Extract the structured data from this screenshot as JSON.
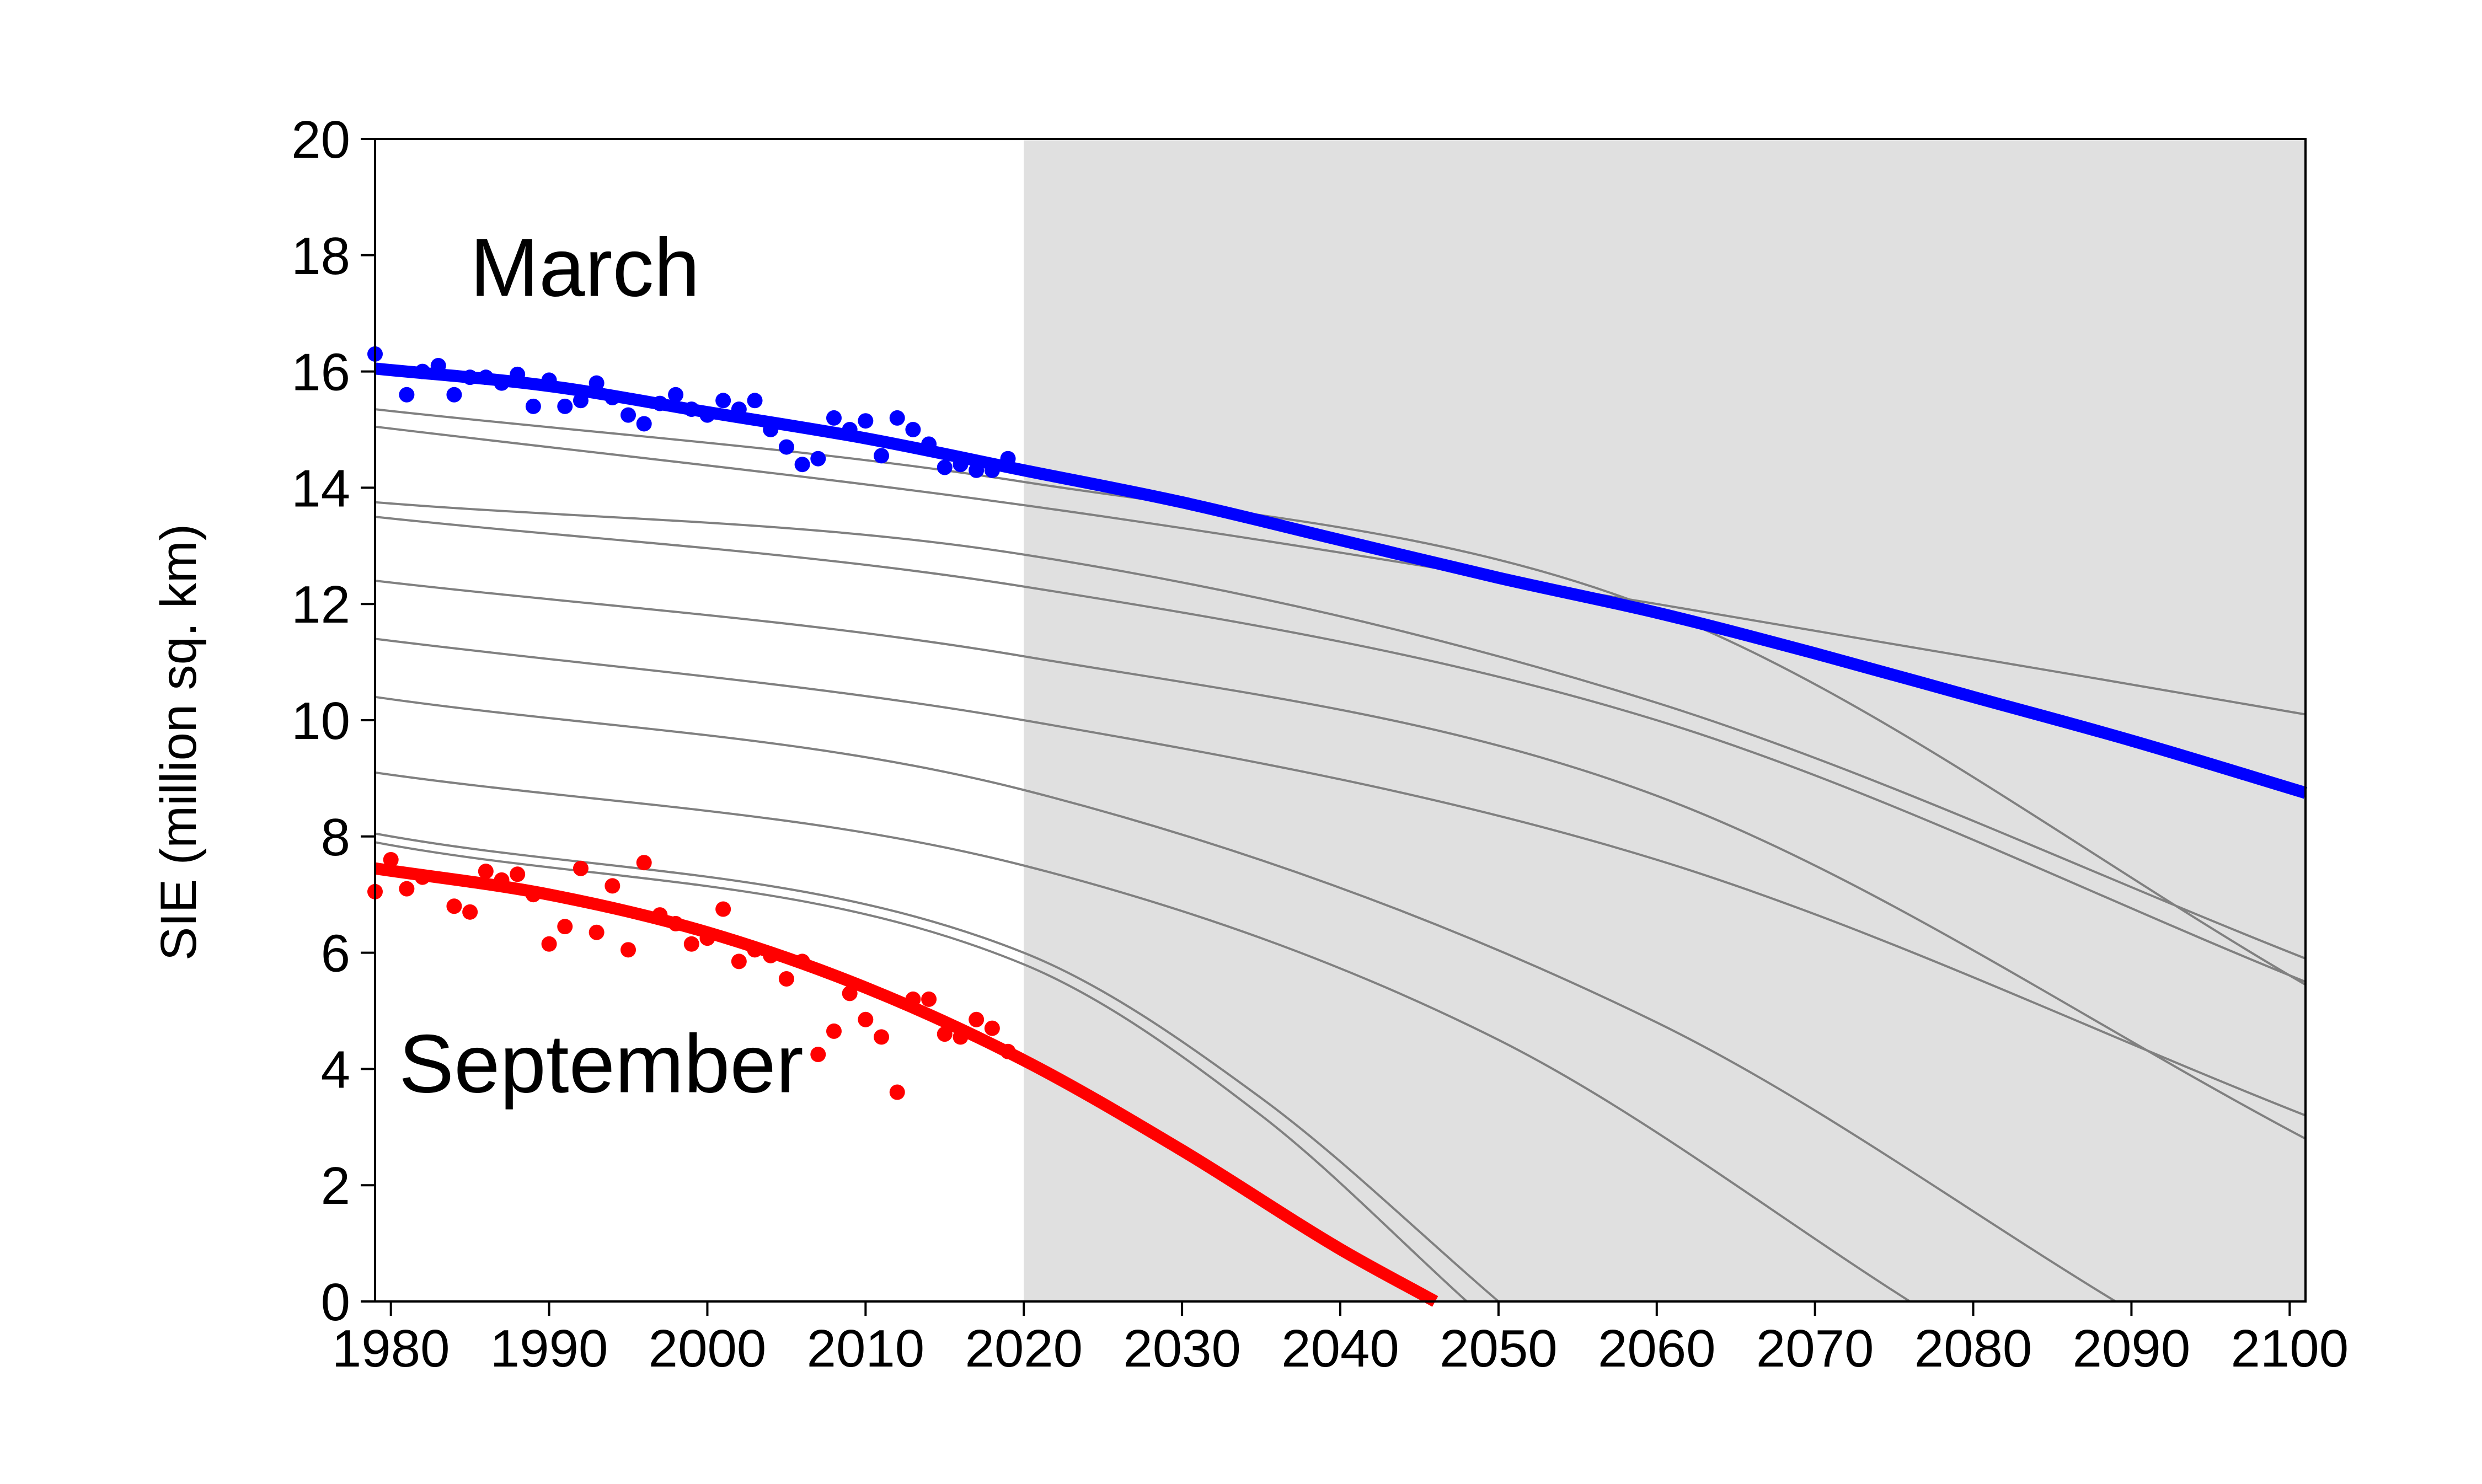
{
  "chart_data": {
    "type": "line",
    "title": "",
    "xlabel": "",
    "ylabel": "SIE (million sq. km)",
    "xlim": [
      1979,
      2101
    ],
    "ylim": [
      0,
      20
    ],
    "xticks": [
      1980,
      1990,
      2000,
      2010,
      2020,
      2030,
      2040,
      2050,
      2060,
      2070,
      2080,
      2090,
      2100
    ],
    "yticks": [
      0,
      2,
      4,
      6,
      8,
      10,
      12,
      14,
      16,
      18,
      20
    ],
    "grid": false,
    "legend": "none",
    "shaded_region": {
      "x_start": 2020,
      "x_end": 2101,
      "color": "#e0e0e0"
    },
    "annotations": [
      {
        "text": "March",
        "x": 1985,
        "y": 17.3
      },
      {
        "text": "September",
        "x": 1980.5,
        "y": 3.6
      }
    ],
    "colors": {
      "march": "#0000ff",
      "september": "#ff0000",
      "ensemble": "#808080",
      "shade": "#e0e0e0"
    },
    "series": [
      {
        "kind": "fit",
        "color": "#0000ff",
        "x": [
          1979,
          1990,
          2000,
          2010,
          2020,
          2030,
          2040,
          2050,
          2060,
          2070,
          2080,
          2090,
          2101
        ],
        "y": [
          16.05,
          15.75,
          15.3,
          14.85,
          14.3,
          13.75,
          13.1,
          12.45,
          11.85,
          11.15,
          10.4,
          9.65,
          8.75
        ]
      },
      {
        "kind": "fit",
        "color": "#ff0000",
        "x": [
          1979,
          1990,
          2000,
          2010,
          2020,
          2030,
          2040,
          2046
        ],
        "y": [
          7.45,
          7.0,
          6.35,
          5.4,
          4.15,
          2.6,
          0.9,
          0.0
        ]
      },
      {
        "kind": "observed",
        "color": "#0000ff",
        "x": [
          1979,
          1981,
          1982,
          1983,
          1984,
          1985,
          1986,
          1987,
          1988,
          1989,
          1990,
          1991,
          1992,
          1993,
          1994,
          1995,
          1996,
          1997,
          1998,
          1999,
          2000,
          2001,
          2002,
          2003,
          2004,
          2005,
          2006,
          2007,
          2008,
          2009,
          2010,
          2011,
          2012,
          2013,
          2014,
          2015,
          2016,
          2017,
          2018,
          2019
        ],
        "y": [
          16.3,
          15.6,
          16.0,
          16.1,
          15.6,
          15.9,
          15.9,
          15.8,
          15.95,
          15.4,
          15.85,
          15.4,
          15.5,
          15.8,
          15.55,
          15.25,
          15.1,
          15.45,
          15.6,
          15.35,
          15.25,
          15.5,
          15.35,
          15.5,
          15.0,
          14.7,
          14.4,
          14.5,
          15.2,
          15.0,
          15.15,
          14.55,
          15.2,
          15.0,
          14.75,
          14.35,
          14.4,
          14.3,
          14.3,
          14.5
        ]
      },
      {
        "kind": "observed",
        "color": "#ff0000",
        "x": [
          1979,
          1980,
          1981,
          1982,
          1984,
          1985,
          1986,
          1987,
          1988,
          1989,
          1990,
          1991,
          1992,
          1993,
          1994,
          1995,
          1996,
          1997,
          1998,
          1999,
          2000,
          2001,
          2002,
          2003,
          2004,
          2005,
          2006,
          2007,
          2008,
          2009,
          2010,
          2011,
          2012,
          2013,
          2014,
          2015,
          2016,
          2017,
          2018,
          2019
        ],
        "y": [
          7.05,
          7.6,
          7.1,
          7.3,
          6.8,
          6.7,
          7.4,
          7.25,
          7.35,
          7.0,
          6.15,
          6.45,
          7.45,
          6.35,
          7.15,
          6.05,
          7.55,
          6.65,
          6.5,
          6.15,
          6.25,
          6.75,
          5.85,
          6.05,
          5.95,
          5.55,
          5.85,
          4.25,
          4.65,
          5.3,
          4.85,
          4.55,
          3.6,
          5.2,
          5.2,
          4.6,
          4.55,
          4.85,
          4.7,
          4.3
        ]
      },
      {
        "kind": "ensemble",
        "color": "#808080",
        "x": [
          1979,
          2020,
          2060,
          2101
        ],
        "y": [
          15.35,
          14.1,
          11.9,
          5.45
        ]
      },
      {
        "kind": "ensemble",
        "color": "#808080",
        "x": [
          1979,
          2020,
          2060,
          2101
        ],
        "y": [
          15.05,
          13.7,
          12.0,
          10.1
        ]
      },
      {
        "kind": "ensemble",
        "color": "#808080",
        "x": [
          1979,
          2020,
          2060,
          2101
        ],
        "y": [
          13.75,
          12.85,
          10.3,
          5.9
        ]
      },
      {
        "kind": "ensemble",
        "color": "#808080",
        "x": [
          1979,
          2020,
          2060,
          2101
        ],
        "y": [
          13.5,
          12.3,
          10.0,
          5.5
        ]
      },
      {
        "kind": "ensemble",
        "color": "#808080",
        "x": [
          1979,
          2020,
          2060,
          2101
        ],
        "y": [
          12.4,
          11.1,
          8.7,
          2.8
        ]
      },
      {
        "kind": "ensemble",
        "color": "#808080",
        "x": [
          1979,
          2020,
          2060,
          2101
        ],
        "y": [
          11.4,
          10.0,
          7.6,
          3.2
        ]
      },
      {
        "kind": "ensemble",
        "color": "#808080",
        "x": [
          1979,
          2020,
          2060,
          2089
        ],
        "y": [
          10.4,
          8.8,
          4.8,
          0.0
        ]
      },
      {
        "kind": "ensemble",
        "color": "#808080",
        "x": [
          1979,
          2020,
          2050,
          2076
        ],
        "y": [
          9.1,
          7.5,
          4.5,
          0.0
        ]
      },
      {
        "kind": "ensemble",
        "color": "#808080",
        "x": [
          1979,
          2020,
          2035,
          2050
        ],
        "y": [
          8.05,
          6.0,
          3.5,
          0.0
        ]
      },
      {
        "kind": "ensemble",
        "color": "#808080",
        "x": [
          1979,
          2020,
          2035,
          2048
        ],
        "y": [
          7.9,
          5.8,
          3.2,
          0.0
        ]
      }
    ]
  }
}
